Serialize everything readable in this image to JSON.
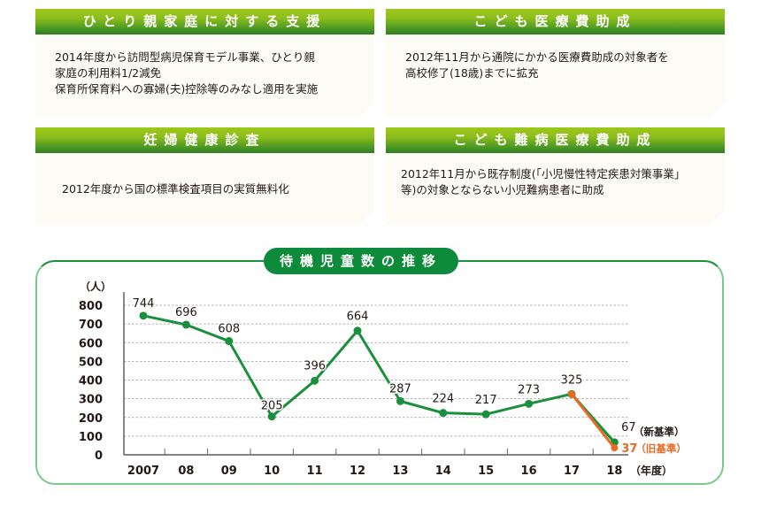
{
  "cards": [
    {
      "title": "ひとり親家庭に対する支援",
      "lines": [
        "2014年度から訪問型病児保育モデル事業、ひとり親",
        "家庭の利用料1/2減免",
        "保育所保育料への寡婦(夫)控除等のみなし適用を実施"
      ]
    },
    {
      "title": "こども医療費助成",
      "lines": [
        "2012年11月から通院にかかる医療費助成の対象者を",
        "高校修了(18歳)までに拡充"
      ]
    },
    {
      "title": "妊婦健康診査",
      "lines": [
        "2012年度から国の標準検査項目の実質無料化"
      ]
    },
    {
      "title": "こども難病医療費助成",
      "lines": [
        "2012年11月から既存制度(「小児慢性特定疾患対策事業」",
        "等)の対象とならない小児難病患者に助成"
      ]
    }
  ],
  "colors": {
    "green_line": "#1a8f3c",
    "orange_line": "#ea6a23",
    "title_bg": "#0d8a3a"
  },
  "chart_data": {
    "type": "line",
    "title": "待機児童数の推移",
    "ylabel": "（人）",
    "xlabel": "（年度）",
    "ylim": [
      0,
      800
    ],
    "yticks": [
      "0",
      "100",
      "200",
      "300",
      "400",
      "500",
      "600",
      "700",
      "800"
    ],
    "categories": [
      "2007",
      "08",
      "09",
      "10",
      "11",
      "12",
      "13",
      "14",
      "15",
      "16",
      "17",
      "18"
    ],
    "grid": true,
    "series": [
      {
        "name": "新基準",
        "color": "#1a8f3c",
        "values": [
          744,
          696,
          608,
          205,
          396,
          664,
          287,
          224,
          217,
          273,
          325,
          67
        ],
        "labels": [
          "744",
          "696",
          "608",
          "205",
          "396",
          "664",
          "287",
          "224",
          "217",
          "273",
          "325",
          "67"
        ]
      },
      {
        "name": "旧基準",
        "color": "#ea6a23",
        "x": [
          "17",
          "18"
        ],
        "values": [
          325,
          37
        ],
        "labels": [
          "",
          "37"
        ]
      }
    ],
    "annotations": {
      "new_standard": "（新基準）",
      "old_standard": "（旧基準）"
    }
  }
}
